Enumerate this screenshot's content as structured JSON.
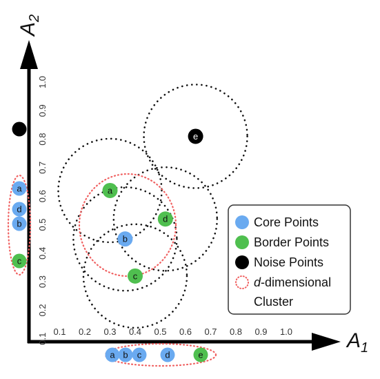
{
  "axes": {
    "x_title": "A",
    "x_sub": "1",
    "y_title": "A",
    "y_sub": "2",
    "x_ticks": [
      "0.1",
      "0.2",
      "0.3",
      "0.4",
      "0.5",
      "0.6",
      "0.7",
      "0.8",
      "0.9",
      "1.0"
    ],
    "y_ticks": [
      "0.1",
      "0.2",
      "0.3",
      "0.4",
      "0.5",
      "0.6",
      "0.7",
      "0.8",
      "0.9",
      "1.0"
    ]
  },
  "points": [
    {
      "label": "a",
      "type": "border",
      "x": 0.3,
      "y": 0.62
    },
    {
      "label": "b",
      "type": "core",
      "x": 0.36,
      "y": 0.45
    },
    {
      "label": "c",
      "type": "border",
      "x": 0.4,
      "y": 0.32
    },
    {
      "label": "d",
      "type": "border",
      "x": 0.52,
      "y": 0.52
    },
    {
      "label": "e",
      "type": "noise",
      "x": 0.64,
      "y": 0.81
    }
  ],
  "x_projection": [
    {
      "label": "a",
      "type": "core"
    },
    {
      "label": "b",
      "type": "core"
    },
    {
      "label": "c",
      "type": "core"
    },
    {
      "label": "d",
      "type": "core"
    },
    {
      "label": "e",
      "type": "border"
    }
  ],
  "y_projection": [
    {
      "label": "a",
      "type": "core"
    },
    {
      "label": "d",
      "type": "core"
    },
    {
      "label": "b",
      "type": "core"
    },
    {
      "label": "c",
      "type": "border"
    },
    {
      "label": "",
      "type": "noise"
    }
  ],
  "legend": {
    "core": "Core Points",
    "border": "Border Points",
    "noise": "Noise Points",
    "cluster_italic": "d",
    "cluster_rest": "-dimensional",
    "cluster_line2": "Cluster"
  },
  "colors": {
    "core": "#6aaaf0",
    "border": "#4fbf4f",
    "noise": "#000000",
    "cluster_outline": "#f06060",
    "axis": "#000000"
  }
}
